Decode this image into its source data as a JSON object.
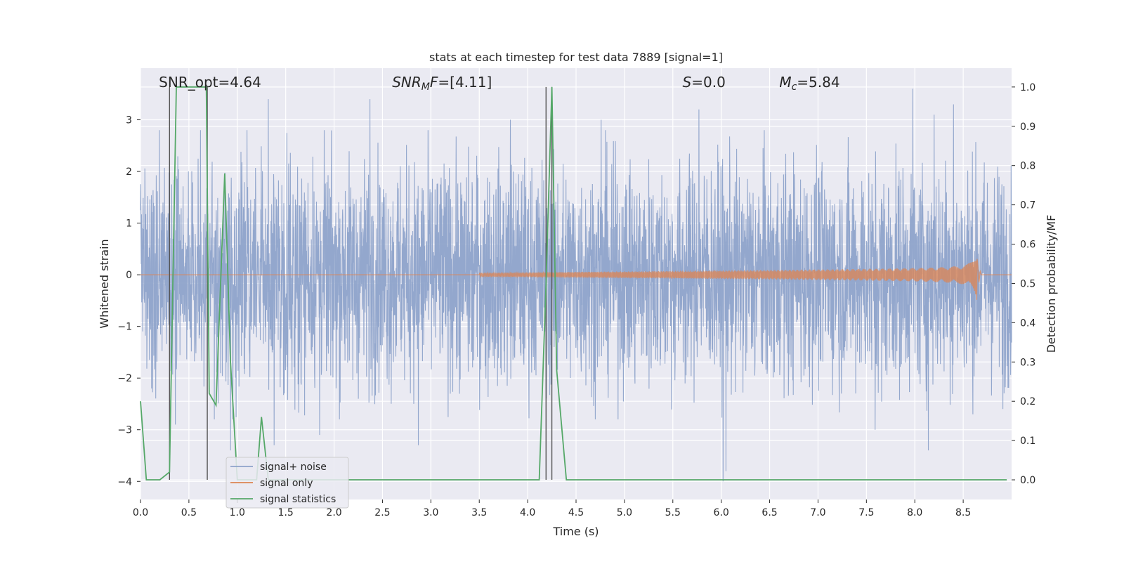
{
  "chart_data": {
    "type": "line",
    "title": "stats at each timestep for test data 7889 [signal=1]",
    "xlabel": "Time (s)",
    "ylabel": "Whitened strain",
    "ylabel_right": "Detection probability/MF",
    "xlim": [
      0,
      9.0
    ],
    "ylim": [
      -4.35,
      4.0
    ],
    "ylim_right": [
      -0.05,
      1.048
    ],
    "x_ticks": [
      0.0,
      0.5,
      1.0,
      1.5,
      2.0,
      2.5,
      3.0,
      3.5,
      4.0,
      4.5,
      5.0,
      5.5,
      6.0,
      6.5,
      7.0,
      7.5,
      8.0,
      8.5
    ],
    "x_tick_labels": [
      "0.0",
      "0.5",
      "1.0",
      "1.5",
      "2.0",
      "2.5",
      "3.0",
      "3.5",
      "4.0",
      "4.5",
      "5.0",
      "5.5",
      "6.0",
      "6.5",
      "7.0",
      "7.5",
      "8.0",
      "8.5"
    ],
    "y_ticks": [
      3,
      2,
      1,
      0,
      -1,
      -2,
      -3,
      -4
    ],
    "y_tick_labels": [
      "3",
      "2",
      "1",
      "0",
      "−1",
      "−2",
      "−3",
      "−4"
    ],
    "y_right_ticks": [
      1.0,
      0.9,
      0.8,
      0.7,
      0.6,
      0.5,
      0.4,
      0.3,
      0.2,
      0.1,
      0.0
    ],
    "y_right_tick_labels": [
      "1.0",
      "0.9",
      "0.8",
      "0.7",
      "0.6",
      "0.5",
      "0.4",
      "0.3",
      "0.2",
      "0.1",
      "0.0"
    ],
    "grid": true,
    "legend_position": "lower-left",
    "annotations": [
      {
        "html": "SNR_opt=4.64",
        "x": 0.19
      },
      {
        "html": "<tspan font-style='italic'>SNR</tspan><tspan font-style='italic' font-size='14' dy='4'>M</tspan><tspan font-style='italic' dy='-4'>F</tspan>=[4.11]",
        "x": 2.6
      },
      {
        "html": "<tspan font-style='italic'>S</tspan>=0.0",
        "x": 5.6
      },
      {
        "html": "<tspan font-style='italic'>M</tspan><tspan font-style='italic' font-size='14' dy='4'>c</tspan><tspan dy='-4'>=5.84</tspan>",
        "x": 6.6
      }
    ],
    "series": [
      {
        "name": "signal+ noise",
        "color": "#8ea3ca",
        "kind": "noise",
        "noise_amplitude": 1.7,
        "spikes": [
          {
            "x": 0.36,
            "y": -2.9
          },
          {
            "x": 0.62,
            "y": 2.8
          },
          {
            "x": 0.93,
            "y": -3.4
          },
          {
            "x": 1.32,
            "y": 3.4
          },
          {
            "x": 1.38,
            "y": -3.3
          },
          {
            "x": 1.85,
            "y": -3.1
          },
          {
            "x": 2.37,
            "y": 3.4
          },
          {
            "x": 2.87,
            "y": -3.3
          },
          {
            "x": 3.82,
            "y": 3.0
          },
          {
            "x": 4.76,
            "y": 3.0
          },
          {
            "x": 5.77,
            "y": 3.2
          },
          {
            "x": 6.02,
            "y": -4.0
          },
          {
            "x": 6.05,
            "y": -3.8
          },
          {
            "x": 7.59,
            "y": -3.0
          },
          {
            "x": 7.98,
            "y": 3.6
          },
          {
            "x": 8.14,
            "y": -3.4
          },
          {
            "x": 8.2,
            "y": 3.1
          },
          {
            "x": 8.4,
            "y": 3.3
          },
          {
            "x": 8.91,
            "y": -2.6
          }
        ]
      },
      {
        "name": "signal only",
        "color": "#dd8452",
        "kind": "chirp",
        "start": 3.5,
        "peak": 8.65,
        "peak_amplitude": 0.55
      },
      {
        "name": "signal statistics",
        "color": "#55a868",
        "axis": "right",
        "x": [
          0.0,
          0.06,
          0.2,
          0.3,
          0.37,
          0.4,
          0.68,
          0.71,
          0.78,
          0.87,
          0.93,
          1.0,
          1.2,
          1.25,
          1.32,
          1.6,
          2.0,
          3.0,
          4.0,
          4.12,
          4.19,
          4.25,
          4.3,
          4.4,
          5.0,
          6.0,
          7.0,
          8.0,
          8.95
        ],
        "y": [
          0.2,
          0.0,
          0.0,
          0.02,
          1.0,
          1.0,
          1.0,
          0.22,
          0.19,
          0.78,
          0.3,
          0.0,
          0.0,
          0.16,
          0.0,
          0.0,
          0.0,
          0.0,
          0.0,
          0.0,
          0.5,
          1.0,
          0.28,
          0.0,
          0.0,
          0.0,
          0.0,
          0.0,
          0.0
        ]
      }
    ],
    "vertical_lines": [
      {
        "x": 0.3,
        "ymin": 0.0,
        "ymax": 1.0
      },
      {
        "x": 0.69,
        "ymin": 0.0,
        "ymax": 1.0
      },
      {
        "x": 4.19,
        "ymin": 0.0,
        "ymax": 1.0
      },
      {
        "x": 4.25,
        "ymin": 0.0,
        "ymax": 1.0
      }
    ]
  }
}
